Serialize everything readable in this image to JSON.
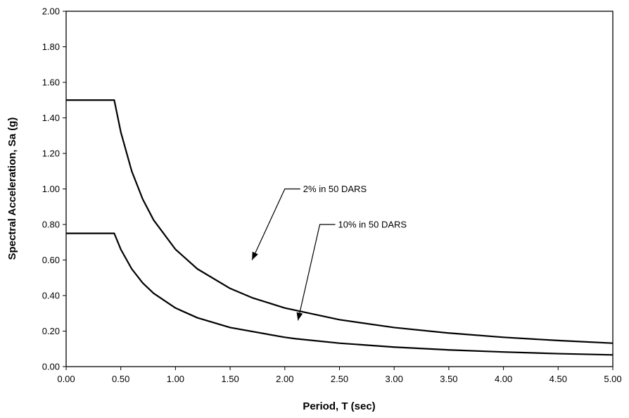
{
  "chart_data": {
    "type": "line",
    "title": "",
    "xlabel": "Period, T (sec)",
    "ylabel": "Spectral Acceleration, Sa (g)",
    "xlim": [
      0,
      5
    ],
    "ylim": [
      0,
      2
    ],
    "x_ticks": [
      "0.00",
      "0.50",
      "1.00",
      "1.50",
      "2.00",
      "2.50",
      "3.00",
      "3.50",
      "4.00",
      "4.50",
      "5.00"
    ],
    "y_ticks": [
      "0.00",
      "0.20",
      "0.40",
      "0.60",
      "0.80",
      "1.00",
      "1.20",
      "1.40",
      "1.60",
      "1.80",
      "2.00"
    ],
    "grid": false,
    "legend": "none",
    "series": [
      {
        "x": [
          0.0,
          0.44,
          0.5,
          0.6,
          0.7,
          0.8,
          1.0,
          1.2,
          1.5,
          1.7,
          2.0,
          2.5,
          3.0,
          3.5,
          4.0,
          4.5,
          5.0
        ],
        "y": [
          1.5,
          1.5,
          1.32,
          1.1,
          0.943,
          0.825,
          0.66,
          0.55,
          0.44,
          0.388,
          0.33,
          0.264,
          0.22,
          0.189,
          0.165,
          0.147,
          0.132
        ]
      },
      {
        "x": [
          0.0,
          0.44,
          0.5,
          0.6,
          0.7,
          0.8,
          1.0,
          1.2,
          1.5,
          2.0,
          2.1,
          2.5,
          3.0,
          3.5,
          4.0,
          4.5,
          5.0
        ],
        "y": [
          0.75,
          0.75,
          0.66,
          0.55,
          0.471,
          0.4125,
          0.33,
          0.275,
          0.22,
          0.165,
          0.157,
          0.132,
          0.11,
          0.094,
          0.0825,
          0.073,
          0.066
        ]
      }
    ],
    "annotations": [
      {
        "text": "2% in 50 DARS",
        "x": 1.7,
        "y": 0.6,
        "label_at": [
          2.0,
          1.0
        ]
      },
      {
        "text": "10% in 50 DARS",
        "x": 2.12,
        "y": 0.26,
        "label_at": [
          2.32,
          0.8
        ]
      }
    ]
  }
}
